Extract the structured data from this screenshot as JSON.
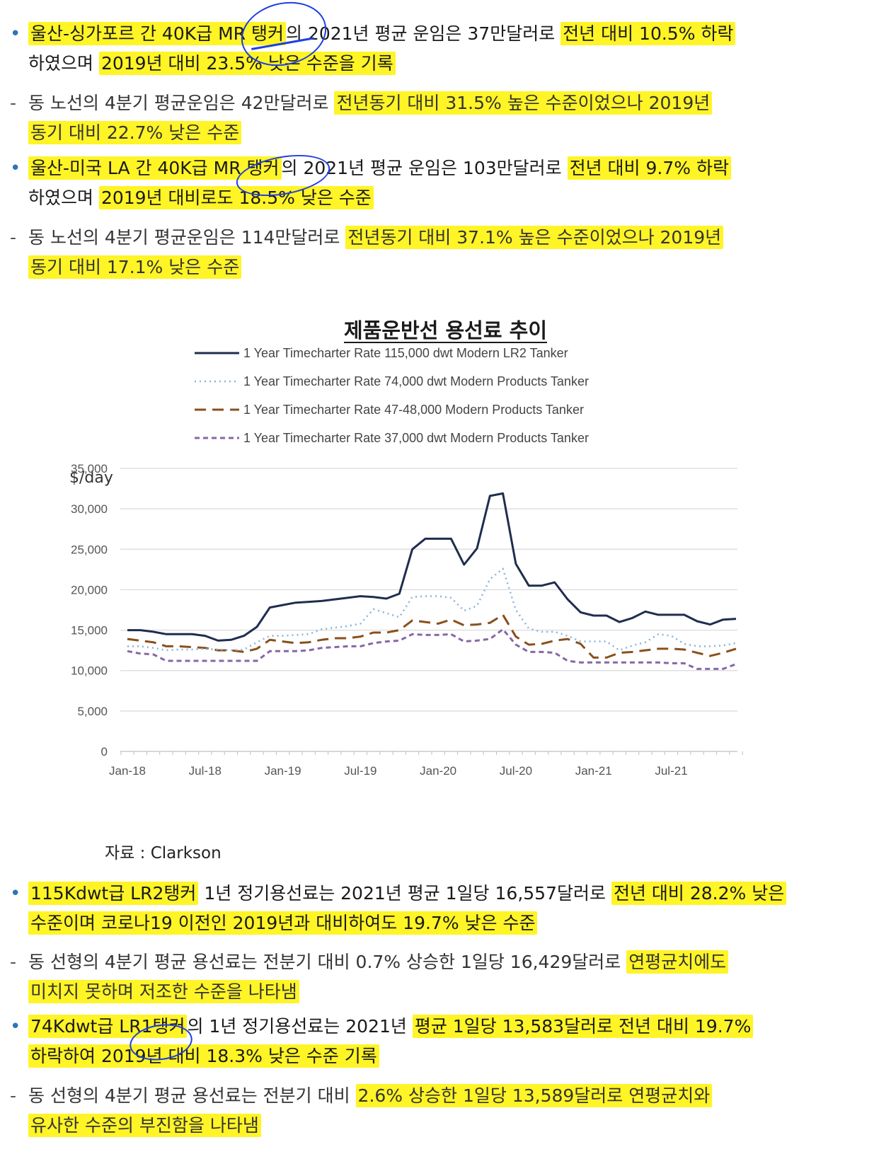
{
  "section_top": [
    {
      "marker": "•",
      "type": "bullet",
      "lines": [
        [
          {
            "t": "울산-싱가포르 간 40K급 MR 탱커",
            "hl": true
          },
          {
            "t": "의 2021년 평균 운임은 37만달러로 ",
            "hl": false
          },
          {
            "t": "전년 대비 10.5% 하락",
            "hl": true
          }
        ],
        [
          {
            "t": "하였으며 ",
            "hl": false
          },
          {
            "t": "2019년 대비 23.5% 낮은 수준을 기록",
            "hl": true
          }
        ]
      ]
    },
    {
      "marker": "-",
      "type": "sub",
      "lines": [
        [
          {
            "t": "동 노선의 4분기 평균운임은 42만달러로 ",
            "hl": false
          },
          {
            "t": "전년동기 대비 31.5% 높은 수준이었으나 2019년",
            "hl": true
          }
        ],
        [
          {
            "t": "동기 대비 22.7% 낮은 수준",
            "hl": true
          }
        ]
      ]
    },
    {
      "marker": "•",
      "type": "bullet",
      "lines": [
        [
          {
            "t": "울산-미국 LA 간 40K급 MR 탱커",
            "hl": true
          },
          {
            "t": "의 2021년 평균 운임은 103만달러로 ",
            "hl": false
          },
          {
            "t": "전년 대비 9.7% 하락",
            "hl": true
          }
        ],
        [
          {
            "t": "하였으며 ",
            "hl": false
          },
          {
            "t": "2019년 대비로도 18.5% 낮은 수준",
            "hl": true
          }
        ]
      ]
    },
    {
      "marker": "-",
      "type": "sub",
      "lines": [
        [
          {
            "t": "동 노선의 4분기 평균운임은 114만달러로 ",
            "hl": false
          },
          {
            "t": "전년동기 대비 37.1% 높은 수준이었으나 2019년",
            "hl": true
          }
        ],
        [
          {
            "t": "동기 대비 17.1% 낮은 수준",
            "hl": true
          }
        ]
      ]
    }
  ],
  "section_bottom": [
    {
      "marker": "•",
      "type": "bullet",
      "lines": [
        [
          {
            "t": "115Kdwt급 LR2탱커",
            "hl": true
          },
          {
            "t": " 1년 정기용선료는 2021년 평균 1일당 16,557달러로 ",
            "hl": false
          },
          {
            "t": "전년 대비 28.2% 낮은",
            "hl": true
          }
        ],
        [
          {
            "t": "수준이며 코로나19 이전인 2019년과 대비하여도 19.7% 낮은 수준",
            "hl": true
          }
        ]
      ]
    },
    {
      "marker": "-",
      "type": "sub",
      "lines": [
        [
          {
            "t": "동 선형의 4분기 평균 용선료는 전분기 대비 0.7% 상승한 1일당 16,429달러로 ",
            "hl": false
          },
          {
            "t": "연평균치에도",
            "hl": true
          }
        ],
        [
          {
            "t": "미치지 못하며 저조한 수준을 나타냄",
            "hl": true
          }
        ]
      ]
    },
    {
      "marker": "•",
      "type": "bullet",
      "lines": [
        [
          {
            "t": "74Kdwt급 LR1탱커",
            "hl": true
          },
          {
            "t": "의 1년 정기용선료는 2021년 ",
            "hl": false
          },
          {
            "t": "평균 1일당 13,583달러로 전년 대비 19.7%",
            "hl": true
          }
        ],
        [
          {
            "t": "하락하여 2019년 대비 18.3% 낮은 수준 기록",
            "hl": true
          }
        ]
      ]
    },
    {
      "marker": "-",
      "type": "sub",
      "lines": [
        [
          {
            "t": "동 선형의 4분기 평균 용선료는 전분기 대비 ",
            "hl": false
          },
          {
            "t": "2.6% 상승한 1일당 13,589달러로 연평균치와",
            "hl": true
          }
        ],
        [
          {
            "t": "유사한 수준의 부진함을 나타냄",
            "hl": true
          }
        ]
      ]
    }
  ],
  "chart_heading": "제품운반선 용선료 추이",
  "source_note": "자료 : Clarkson",
  "chart_data": {
    "type": "line",
    "title": "",
    "ylabel": "$/day",
    "xlabel": "",
    "ylim": [
      0,
      35000
    ],
    "y_ticks": [
      "0",
      "5,000",
      "10,000",
      "15,000",
      "20,000",
      "25,000",
      "30,000",
      "35,000"
    ],
    "x_tick_labels": [
      "Jan-18",
      "Jul-18",
      "Jan-19",
      "Jul-19",
      "Jan-20",
      "Jul-20",
      "Jan-21",
      "Jul-21"
    ],
    "x": [
      "Jan-18",
      "Feb-18",
      "Mar-18",
      "Apr-18",
      "May-18",
      "Jun-18",
      "Jul-18",
      "Aug-18",
      "Sep-18",
      "Oct-18",
      "Nov-18",
      "Dec-18",
      "Jan-19",
      "Feb-19",
      "Mar-19",
      "Apr-19",
      "May-19",
      "Jun-19",
      "Jul-19",
      "Aug-19",
      "Sep-19",
      "Oct-19",
      "Nov-19",
      "Dec-19",
      "Jan-20",
      "Feb-20",
      "Mar-20",
      "Apr-20",
      "May-20",
      "Jun-20",
      "Jul-20",
      "Aug-20",
      "Sep-20",
      "Oct-20",
      "Nov-20",
      "Dec-20",
      "Jan-21",
      "Feb-21",
      "Mar-21",
      "Apr-21",
      "May-21",
      "Jun-21",
      "Jul-21",
      "Aug-21",
      "Sep-21",
      "Oct-21",
      "Nov-21",
      "Dec-21"
    ],
    "grid": true,
    "legend_position": "top",
    "series": [
      {
        "name": "1 Year Timecharter Rate 115,000 dwt Modern LR2 Tanker",
        "style": "solid",
        "color": "#1f2d4e",
        "values": [
          15000,
          15000,
          14800,
          14500,
          14500,
          14500,
          14300,
          13700,
          13800,
          14300,
          15400,
          17800,
          18100,
          18400,
          18500,
          18600,
          18800,
          19000,
          19200,
          19100,
          18900,
          19500,
          25000,
          26300,
          26300,
          26300,
          23100,
          25100,
          31600,
          31900,
          23200,
          20500,
          20500,
          20900,
          18800,
          17200,
          16800,
          16800,
          16000,
          16500,
          17300,
          16900,
          16900,
          16900,
          16100,
          15700,
          16300,
          16400
        ]
      },
      {
        "name": "1 Year Timecharter Rate 74,000 dwt Modern Products Tanker",
        "style": "dotted",
        "color": "#8db4d9",
        "values": [
          13000,
          13000,
          12800,
          12500,
          12600,
          12600,
          12700,
          12600,
          12500,
          12600,
          13500,
          14300,
          14300,
          14400,
          14500,
          15100,
          15300,
          15500,
          15800,
          17600,
          17100,
          16600,
          19100,
          19200,
          19200,
          19000,
          17400,
          18000,
          21300,
          22600,
          17500,
          15200,
          14800,
          14800,
          14300,
          13600,
          13600,
          13600,
          12500,
          13100,
          13500,
          14500,
          14300,
          13300,
          13000,
          13000,
          13100,
          13400
        ]
      },
      {
        "name": "1 Year Timecharter Rate 47-48,000 Modern Products Tanker",
        "style": "dashed",
        "color": "#8a4f1c",
        "values": [
          13900,
          13700,
          13500,
          13000,
          13000,
          12900,
          12800,
          12500,
          12500,
          12300,
          12700,
          13800,
          13600,
          13400,
          13500,
          13800,
          14000,
          14000,
          14200,
          14700,
          14700,
          15000,
          16200,
          16000,
          15800,
          16300,
          15600,
          15700,
          15900,
          16900,
          14200,
          13200,
          13300,
          13700,
          13900,
          13300,
          11600,
          11600,
          12200,
          12300,
          12500,
          12700,
          12700,
          12600,
          12200,
          11800,
          12200,
          12700
        ]
      },
      {
        "name": "1 Year Timecharter Rate 37,000 dwt Modern Products Tanker",
        "style": "dashed",
        "color": "#8667a8",
        "values": [
          12400,
          12100,
          12000,
          11200,
          11200,
          11200,
          11200,
          11200,
          11200,
          11200,
          11200,
          12400,
          12400,
          12400,
          12500,
          12800,
          12900,
          13000,
          13000,
          13400,
          13600,
          13700,
          14500,
          14400,
          14400,
          14500,
          13600,
          13700,
          13900,
          15100,
          13200,
          12300,
          12300,
          12200,
          11200,
          11000,
          11000,
          11000,
          11000,
          11000,
          11000,
          11000,
          10900,
          10900,
          10200,
          10200,
          10200,
          10800
        ]
      }
    ]
  }
}
